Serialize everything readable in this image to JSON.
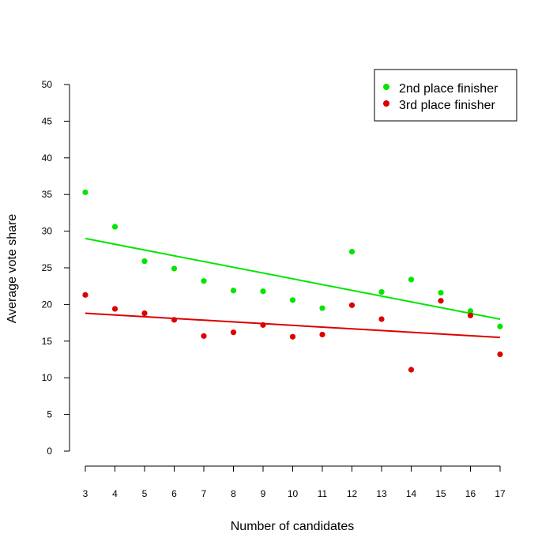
{
  "chart_data": {
    "type": "scatter",
    "title": "",
    "xlabel": "Number of candidates",
    "ylabel": "Average vote share",
    "xlim": [
      3,
      17
    ],
    "ylim": [
      0,
      50
    ],
    "xticks": [
      3,
      4,
      5,
      6,
      7,
      8,
      9,
      10,
      11,
      12,
      13,
      14,
      15,
      16,
      17
    ],
    "yticks": [
      0,
      5,
      10,
      15,
      20,
      25,
      30,
      35,
      40,
      45,
      50
    ],
    "grid": false,
    "legend_position": "top-right",
    "x": [
      3,
      4,
      5,
      6,
      7,
      8,
      9,
      10,
      11,
      12,
      13,
      14,
      15,
      16,
      17
    ],
    "series": [
      {
        "name": "2nd place finisher",
        "color": "#00e600",
        "values": [
          35.3,
          30.6,
          25.9,
          24.9,
          23.2,
          21.9,
          21.8,
          20.6,
          19.5,
          27.2,
          21.7,
          23.4,
          21.6,
          19.1,
          17.0
        ],
        "trend": {
          "from": 29.0,
          "to": 18.0
        }
      },
      {
        "name": "3rd place finisher",
        "color": "#dd0000",
        "values": [
          21.3,
          19.4,
          18.8,
          17.9,
          15.7,
          16.2,
          17.2,
          15.6,
          15.9,
          19.9,
          18.0,
          11.1,
          20.5,
          18.5,
          13.2
        ],
        "trend": {
          "from": 18.8,
          "to": 15.5
        }
      }
    ]
  }
}
